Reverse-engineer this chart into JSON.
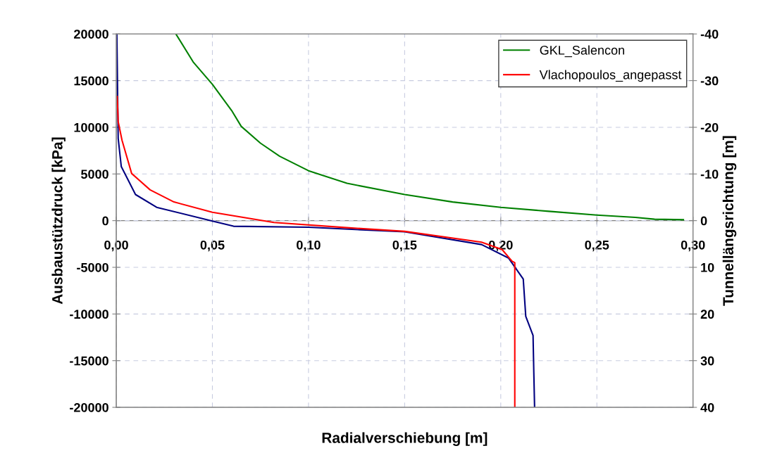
{
  "chart_data": {
    "type": "line",
    "xlabel": "Radialverschiebung [m]",
    "ylabel": "Ausbaustützdruck [kPa]",
    "y2label": "Tunnellängsrichtung [m]",
    "xlim": [
      0,
      0.3
    ],
    "xticks": [
      {
        "value": 0,
        "label": "0,00"
      },
      {
        "value": 0.05,
        "label": "0,05"
      },
      {
        "value": 0.1,
        "label": "0,10"
      },
      {
        "value": 0.15,
        "label": "0,15"
      },
      {
        "value": 0.2,
        "label": "0,20"
      },
      {
        "value": 0.25,
        "label": "0,25"
      },
      {
        "value": 0.3,
        "label": "0,30"
      }
    ],
    "ylim": [
      -20000,
      20000
    ],
    "yticks": [
      -20000,
      -15000,
      -10000,
      -5000,
      0,
      5000,
      10000,
      15000,
      20000
    ],
    "y2lim": [
      40,
      -40
    ],
    "y2ticks": [
      -40,
      -30,
      -20,
      -10,
      0,
      10,
      20,
      30,
      40
    ],
    "grid": true,
    "legend": "top right",
    "line_style": "solid",
    "marker": "none",
    "series": [
      {
        "name": "GKL_Salencon",
        "color": "#008000",
        "x": [
          0.031,
          0.04,
          0.05,
          0.06,
          0.065,
          0.075,
          0.085,
          0.1,
          0.12,
          0.15,
          0.175,
          0.2,
          0.225,
          0.25,
          0.27,
          0.28,
          0.295
        ],
        "values": [
          20000,
          17000,
          14600,
          11800,
          10100,
          8300,
          6900,
          5350,
          4000,
          2800,
          2000,
          1430,
          1000,
          600,
          350,
          150,
          100
        ]
      },
      {
        "color": "#000080",
        "x": [
          0.0003,
          0.001,
          0.0026,
          0.01,
          0.021,
          0.05,
          0.061,
          0.1,
          0.15,
          0.19,
          0.204,
          0.2117,
          0.213,
          0.2168,
          0.2172,
          0.2176
        ],
        "values": [
          20000,
          8800,
          5800,
          2800,
          1430,
          -50,
          -600,
          -700,
          -1200,
          -2560,
          -4000,
          -6250,
          -10240,
          -12300,
          -16300,
          -20000
        ]
      },
      {
        "name": "Vlachopoulos_angepasst",
        "color": "#ff0000",
        "x": [
          0.0005,
          0.001,
          0.003,
          0.008,
          0.0176,
          0.03,
          0.05,
          0.082,
          0.12,
          0.15,
          0.19,
          0.2007,
          0.2059,
          0.2073,
          0.2073
        ],
        "values": [
          13300,
          10600,
          8600,
          5050,
          3300,
          2000,
          900,
          -200,
          -750,
          -1150,
          -2300,
          -3100,
          -4350,
          -4500,
          -20000
        ]
      }
    ]
  }
}
